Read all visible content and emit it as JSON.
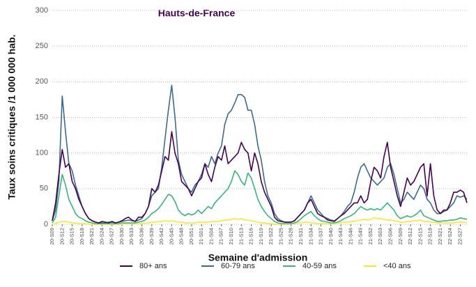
{
  "chart_data": {
    "type": "line",
    "title": "Hauts-de-France",
    "x_label": "Semaine d'admission",
    "y_label": "Taux soins critiques /1 000 000 hab.",
    "categories": [
      "20-S09",
      null,
      null,
      "20-S12",
      null,
      null,
      "20-S15",
      null,
      null,
      "20-S18",
      null,
      null,
      "20-S21",
      null,
      null,
      "20-S24",
      null,
      null,
      "20-S27",
      null,
      null,
      "20-S30",
      null,
      null,
      "20-S33",
      null,
      null,
      "20-S36",
      null,
      null,
      "20-S39",
      null,
      null,
      "20-S42",
      null,
      null,
      "20-S45",
      null,
      null,
      "20-S48",
      null,
      null,
      "20-S51",
      null,
      null,
      "21-S01",
      null,
      null,
      "21-S04",
      null,
      null,
      "21-S07",
      null,
      null,
      "21-S10",
      null,
      null,
      "21-S13",
      null,
      null,
      "21-S16",
      null,
      null,
      "21-S19",
      null,
      null,
      "21-S22",
      null,
      null,
      "21-S25",
      null,
      null,
      "21-S28",
      null,
      null,
      "21-S31",
      null,
      null,
      "21-S34",
      null,
      null,
      "21-S37",
      null,
      null,
      "21-S40",
      null,
      null,
      "21-S43",
      null,
      null,
      "21-S46",
      null,
      null,
      "21-S49",
      null,
      null,
      "21-S52",
      null,
      null,
      "22-S03",
      null,
      null,
      "22-S06",
      null,
      null,
      "22-S09",
      null,
      null,
      "22-S12",
      null,
      null,
      "22-S15",
      null,
      null,
      "22-S18",
      null,
      null,
      "22-S21",
      null,
      null,
      "22-S24",
      null,
      null,
      "22-S27",
      null,
      null
    ],
    "series": [
      {
        "name": "80+ ans",
        "color": "#440154",
        "values": [
          5,
          30,
          70,
          105,
          80,
          85,
          60,
          50,
          35,
          25,
          15,
          8,
          5,
          3,
          2,
          4,
          3,
          2,
          4,
          2,
          3,
          5,
          8,
          10,
          6,
          4,
          10,
          10,
          15,
          25,
          50,
          45,
          55,
          75,
          95,
          90,
          130,
          100,
          85,
          60,
          55,
          50,
          40,
          50,
          60,
          65,
          85,
          70,
          60,
          80,
          95,
          90,
          110,
          85,
          90,
          95,
          100,
          115,
          105,
          100,
          75,
          100,
          85,
          60,
          45,
          35,
          25,
          10,
          5,
          4,
          3,
          3,
          3,
          5,
          10,
          15,
          20,
          30,
          35,
          25,
          15,
          12,
          10,
          6,
          5,
          4,
          8,
          12,
          15,
          20,
          25,
          30,
          30,
          40,
          30,
          35,
          60,
          80,
          75,
          65,
          95,
          115,
          80,
          60,
          40,
          25,
          45,
          65,
          55,
          60,
          70,
          80,
          85,
          40,
          85,
          40,
          20,
          15,
          20,
          20,
          30,
          45,
          45,
          48,
          45,
          30
        ]
      },
      {
        "name": "60-79 ans",
        "color": "#3b6a8f",
        "values": [
          5,
          20,
          60,
          180,
          130,
          85,
          75,
          55,
          40,
          25,
          15,
          8,
          5,
          3,
          2,
          2,
          2,
          3,
          3,
          2,
          3,
          4,
          5,
          6,
          5,
          4,
          6,
          8,
          15,
          25,
          40,
          45,
          50,
          80,
          120,
          160,
          195,
          150,
          90,
          70,
          60,
          50,
          45,
          55,
          60,
          70,
          85,
          80,
          95,
          85,
          100,
          110,
          140,
          155,
          160,
          170,
          182,
          182,
          178,
          160,
          160,
          140,
          110,
          90,
          60,
          40,
          30,
          15,
          8,
          5,
          3,
          3,
          3,
          5,
          10,
          15,
          20,
          30,
          40,
          30,
          20,
          15,
          10,
          8,
          6,
          5,
          8,
          12,
          18,
          25,
          30,
          45,
          65,
          80,
          85,
          75,
          65,
          60,
          55,
          60,
          65,
          80,
          85,
          70,
          50,
          30,
          35,
          45,
          40,
          35,
          45,
          55,
          50,
          35,
          30,
          20,
          15,
          15,
          18,
          20,
          25,
          30,
          40,
          38,
          40,
          35
        ]
      },
      {
        "name": "40-59 ans",
        "color": "#35b779",
        "values": [
          2,
          10,
          40,
          70,
          55,
          35,
          25,
          15,
          10,
          8,
          5,
          3,
          2,
          1,
          1,
          1,
          1,
          1,
          1,
          1,
          1,
          2,
          2,
          2,
          2,
          2,
          3,
          4,
          6,
          10,
          15,
          18,
          22,
          28,
          35,
          42,
          40,
          32,
          20,
          15,
          12,
          15,
          13,
          15,
          20,
          15,
          20,
          25,
          22,
          30,
          35,
          40,
          45,
          50,
          60,
          75,
          70,
          60,
          55,
          72,
          65,
          50,
          35,
          25,
          18,
          12,
          8,
          4,
          2,
          1,
          1,
          1,
          1,
          2,
          4,
          8,
          12,
          15,
          18,
          12,
          8,
          5,
          4,
          3,
          2,
          2,
          3,
          5,
          8,
          10,
          12,
          15,
          20,
          25,
          22,
          20,
          22,
          20,
          22,
          20,
          25,
          30,
          25,
          20,
          12,
          8,
          10,
          12,
          10,
          12,
          15,
          20,
          12,
          10,
          8,
          6,
          4,
          4,
          5,
          5,
          6,
          6,
          7,
          9,
          8,
          7
        ]
      },
      {
        "name": "<40 ans",
        "color": "#fde725",
        "values": [
          0,
          1,
          3,
          4,
          4,
          3,
          2,
          2,
          1,
          1,
          1,
          0,
          0,
          0,
          0,
          0,
          0,
          0,
          0,
          0,
          0,
          0,
          1,
          1,
          1,
          1,
          1,
          1,
          2,
          2,
          3,
          3,
          4,
          4,
          5,
          4,
          5,
          4,
          3,
          3,
          2,
          2,
          2,
          2,
          3,
          3,
          3,
          3,
          4,
          4,
          4,
          5,
          6,
          6,
          7,
          8,
          7,
          8,
          6,
          6,
          5,
          4,
          3,
          2,
          2,
          1,
          1,
          0,
          0,
          0,
          0,
          0,
          1,
          1,
          2,
          2,
          3,
          3,
          2,
          2,
          1,
          1,
          1,
          1,
          1,
          1,
          2,
          2,
          3,
          3,
          4,
          4,
          5,
          6,
          7,
          6,
          7,
          9,
          8,
          8,
          7,
          6,
          6,
          5,
          4,
          3,
          3,
          4,
          4,
          5,
          5,
          6,
          4,
          4,
          3,
          3,
          2,
          2,
          2,
          2,
          2,
          2,
          3,
          3,
          3,
          2
        ]
      }
    ],
    "ylim": [
      0,
      300
    ],
    "yticks": [
      0,
      50,
      100,
      150,
      200,
      250,
      300
    ],
    "grid": true,
    "legend": "bottom"
  }
}
